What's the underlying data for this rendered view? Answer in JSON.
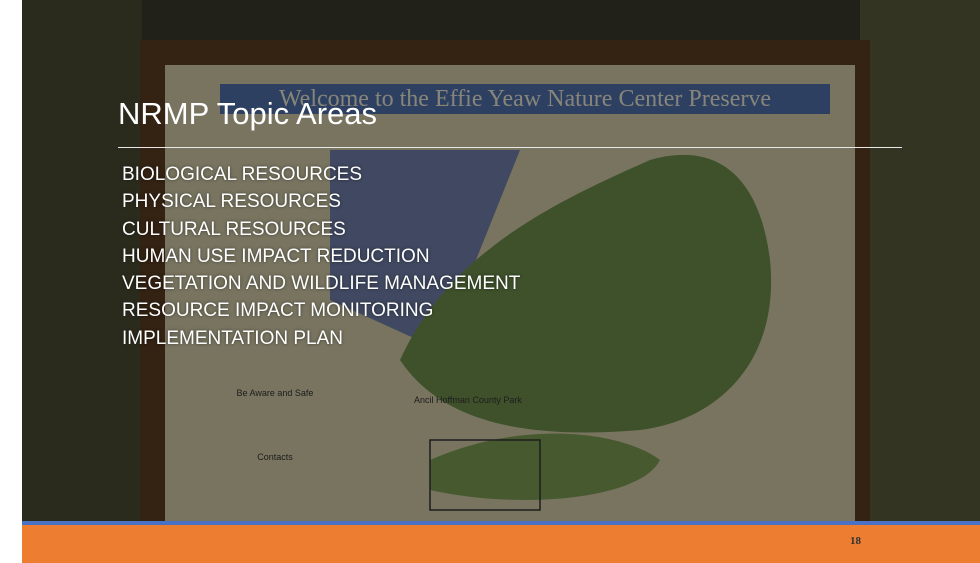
{
  "header": {
    "title": "NRMP Topic Areas"
  },
  "topics": [
    "BIOLOGICAL RESOURCES",
    "PHYSICAL RESOURCES",
    "CULTURAL RESOURCES",
    "HUMAN USE IMPACT REDUCTION",
    "VEGETATION AND WILDLIFE MANAGEMENT",
    "RESOURCE IMPACT MONITORING",
    "IMPLEMENTATION PLAN"
  ],
  "background": {
    "sign_title": "Welcome to the Effie Yeaw Nature Center Preserve",
    "sign_labels": [
      "Ancil Hoffman County Park",
      "Be Aware and Safe",
      "Contacts"
    ]
  },
  "footer": {
    "page_number": "18"
  }
}
